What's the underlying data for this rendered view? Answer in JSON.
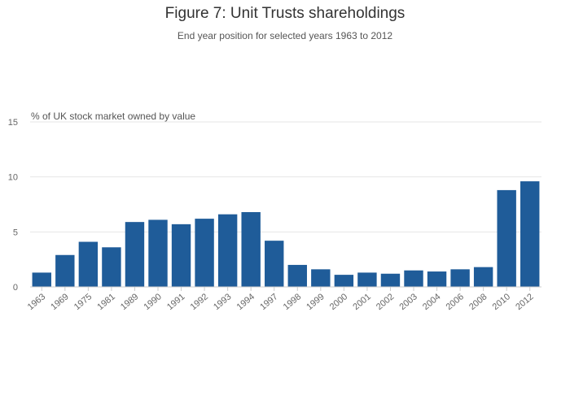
{
  "chart_data": {
    "type": "bar",
    "title": "Figure 7: Unit Trusts shareholdings",
    "subtitle": "End year position for selected years 1963 to 2012",
    "ylabel": "% of UK stock market owned by value",
    "xlabel": "",
    "ylim": [
      0,
      15
    ],
    "yticks": [
      0,
      5,
      10,
      15
    ],
    "grid": true,
    "color": "#1f5c99",
    "categories": [
      "1963",
      "1969",
      "1975",
      "1981",
      "1989",
      "1990",
      "1991",
      "1992",
      "1993",
      "1994",
      "1997",
      "1998",
      "1999",
      "2000",
      "2001",
      "2002",
      "2003",
      "2004",
      "2006",
      "2008",
      "2010",
      "2012"
    ],
    "values": [
      1.3,
      2.9,
      4.1,
      3.6,
      5.9,
      6.1,
      5.7,
      6.2,
      6.6,
      6.8,
      4.2,
      2.0,
      1.6,
      1.1,
      1.3,
      1.2,
      1.5,
      1.4,
      1.6,
      1.8,
      8.8,
      9.6
    ]
  }
}
